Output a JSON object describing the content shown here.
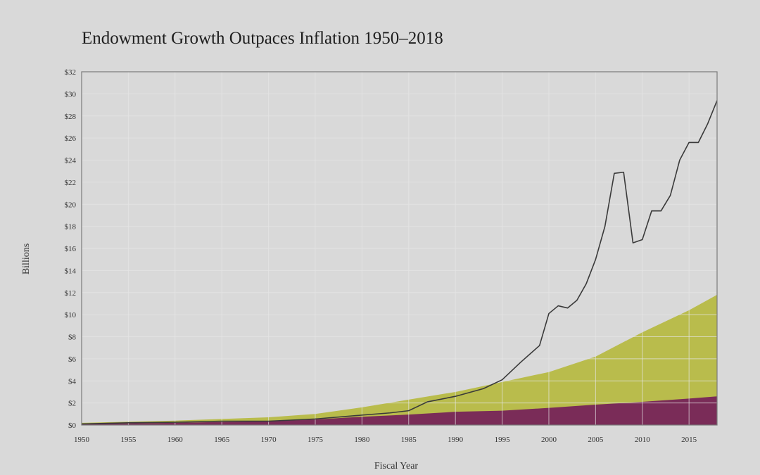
{
  "chart_data": {
    "type": "area",
    "title": "Endowment Growth Outpaces Inflation 1950–2018",
    "xlabel": "Fiscal Year",
    "ylabel": "Billions",
    "xlim": [
      1950,
      2018
    ],
    "ylim": [
      0,
      32
    ],
    "x_ticks": [
      1950,
      1955,
      1960,
      1965,
      1970,
      1975,
      1980,
      1985,
      1990,
      1995,
      2000,
      2005,
      2010,
      2015
    ],
    "x_tick_labels": [
      "1950",
      "1955",
      "1960",
      "1965",
      "1970",
      "1975",
      "1980",
      "1985",
      "1990",
      "1995",
      "2000",
      "2005",
      "2010",
      "2015"
    ],
    "y_ticks": [
      0,
      2,
      4,
      6,
      8,
      10,
      12,
      14,
      16,
      18,
      20,
      22,
      24,
      26,
      28,
      30,
      32
    ],
    "y_tick_labels": [
      "$0",
      "$2",
      "$4",
      "$6",
      "$8",
      "$10",
      "$12",
      "$14",
      "$16",
      "$18",
      "$20",
      "$22",
      "$24",
      "$26",
      "$28",
      "$30",
      "$32"
    ],
    "grid": true,
    "colors": {
      "background": "#d9d9d9",
      "plot_border": "#7a7a7a",
      "gridline": "#e6e6e6",
      "series_line": "#3a3a3a",
      "area_upper": "#b9bc4c",
      "area_lower": "#7a2c58"
    },
    "series": [
      {
        "kind": "line",
        "x": [
          1950,
          1955,
          1960,
          1965,
          1970,
          1975,
          1980,
          1983,
          1985,
          1987,
          1990,
          1993,
          1995,
          1997,
          1999,
          2000,
          2001,
          2002,
          2003,
          2004,
          2005,
          2006,
          2007,
          2008,
          2009,
          2010,
          2011,
          2012,
          2013,
          2014,
          2015,
          2016,
          2017,
          2018
        ],
        "y": [
          0.1,
          0.2,
          0.25,
          0.35,
          0.35,
          0.55,
          0.9,
          1.1,
          1.3,
          2.1,
          2.6,
          3.3,
          4.1,
          5.7,
          7.2,
          10.1,
          10.8,
          10.6,
          11.3,
          12.8,
          15.0,
          18.0,
          22.8,
          22.9,
          16.5,
          16.8,
          19.4,
          19.4,
          20.8,
          24.0,
          25.6,
          25.6,
          27.3,
          29.4
        ]
      },
      {
        "kind": "area",
        "x": [
          1950,
          1955,
          1960,
          1965,
          1970,
          1975,
          1980,
          1985,
          1990,
          1995,
          2000,
          2005,
          2010,
          2015,
          2018
        ],
        "y": [
          0.2,
          0.3,
          0.4,
          0.55,
          0.7,
          1.0,
          1.6,
          2.3,
          3.0,
          3.9,
          4.8,
          6.2,
          8.4,
          10.4,
          11.8
        ]
      },
      {
        "kind": "area",
        "x": [
          1950,
          1955,
          1960,
          1965,
          1970,
          1975,
          1980,
          1985,
          1990,
          1995,
          2000,
          2005,
          2010,
          2015,
          2018
        ],
        "y": [
          0.1,
          0.15,
          0.2,
          0.28,
          0.35,
          0.5,
          0.75,
          0.95,
          1.2,
          1.3,
          1.55,
          1.85,
          2.1,
          2.4,
          2.6
        ]
      }
    ]
  }
}
